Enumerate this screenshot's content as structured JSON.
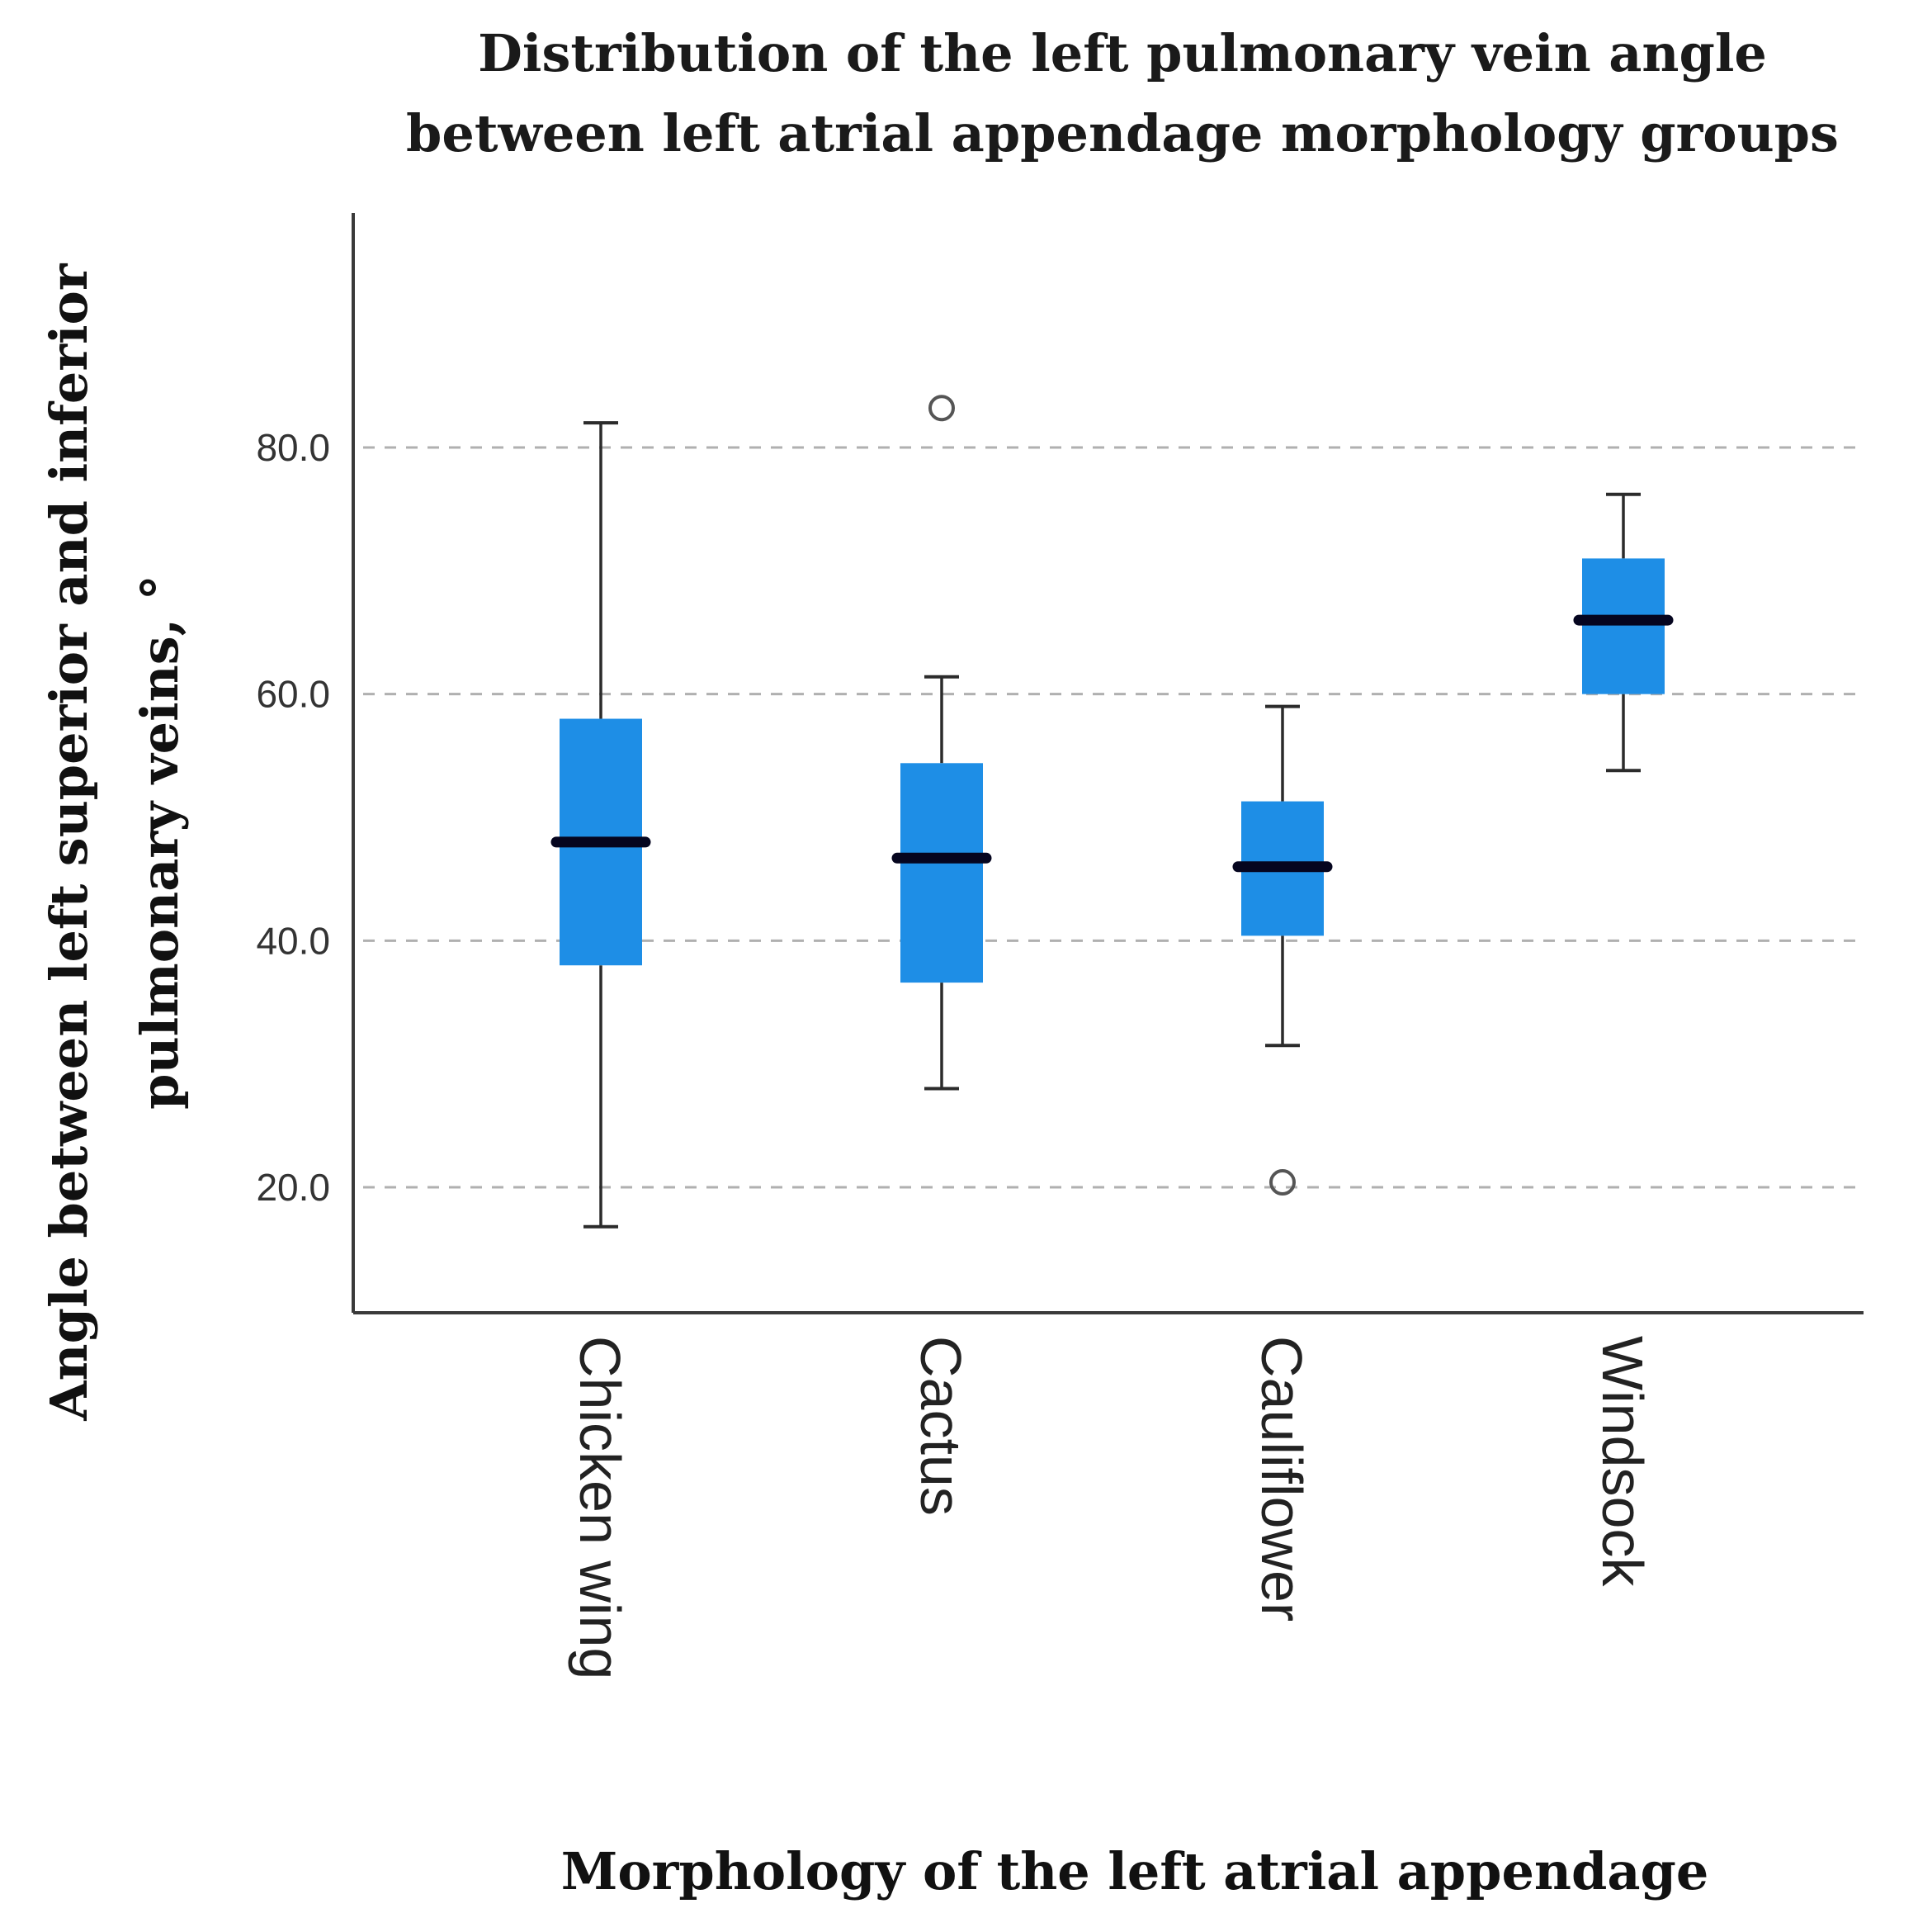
{
  "chart_data": {
    "type": "boxplot",
    "title": "Distribution of the left pulmonary vein angle between left atrial appendage morphology groups",
    "title_lines": [
      "Distribution of the left pulmonary vein angle",
      "between left atrial appendage morphology groups"
    ],
    "xlabel": "Morphology of the left atrial appendage",
    "ylabel": "Angle between left superior and inferior pulmonary veins, °",
    "ylabel_lines": [
      "Angle between left superior and inferior",
      "pulmonary veins, °"
    ],
    "categories": [
      "Chicken wing",
      "Cactus",
      "Cauliflower",
      "Windsock"
    ],
    "y_ticks": [
      20,
      40,
      60,
      80
    ],
    "y_tick_labels": [
      "20.0",
      "40.0",
      "60.0",
      "80.0"
    ],
    "ylim": [
      10,
      99
    ],
    "grid": "horizontal dashed",
    "series": [
      {
        "name": "Chicken wing",
        "whisker_low": 16.8,
        "q1": 38.0,
        "median": 48.0,
        "q3": 58.0,
        "whisker_high": 82.0,
        "outliers": []
      },
      {
        "name": "Cactus",
        "whisker_low": 28.0,
        "q1": 36.6,
        "median": 46.7,
        "q3": 54.4,
        "whisker_high": 61.4,
        "outliers": [
          83.2
        ]
      },
      {
        "name": "Cauliflower",
        "whisker_low": 31.5,
        "q1": 40.4,
        "median": 46.0,
        "q3": 51.3,
        "whisker_high": 59.0,
        "outliers": [
          20.4
        ]
      },
      {
        "name": "Windsock",
        "whisker_low": 53.8,
        "q1": 60.0,
        "median": 66.0,
        "q3": 71.0,
        "whisker_high": 76.2,
        "outliers": []
      }
    ],
    "colors": {
      "box_fill": "#1e8ee6",
      "median": "#05051f",
      "whisker": "#2b2b2b",
      "grid": "#b0b0b0",
      "axis": "#3a3a3a"
    }
  }
}
